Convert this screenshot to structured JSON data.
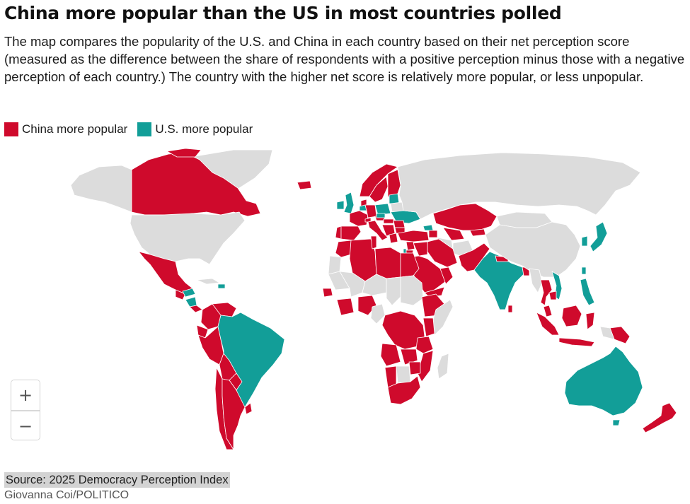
{
  "header": {
    "title": "China more popular than the US in most countries polled",
    "subtitle": "The map compares the popularity of the U.S. and China in each country based on their net perception score (measured as the difference between the share of respondents with a positive perception minus those with a negative perception of each country.) The country with the higher net score is relatively more popular, or less unpopular."
  },
  "legend": [
    {
      "label": "China more popular",
      "color": "#cf0a2c"
    },
    {
      "label": "U.S. more popular",
      "color": "#129e98"
    }
  ],
  "map": {
    "colors": {
      "china": "#cf0a2c",
      "us": "#129e98",
      "no_data": "#dcdcdc",
      "border": "#ffffff",
      "ocean": "#ffffff"
    },
    "icons": {
      "zoom_in": "plus-icon",
      "zoom_out": "minus-icon"
    },
    "controls": {
      "zoom_in_label": "+",
      "zoom_out_label": "−"
    }
  },
  "footer": {
    "source": "Source: 2025 Democracy Perception Index",
    "credit": "Giovanna Coi/POLITICO"
  }
}
